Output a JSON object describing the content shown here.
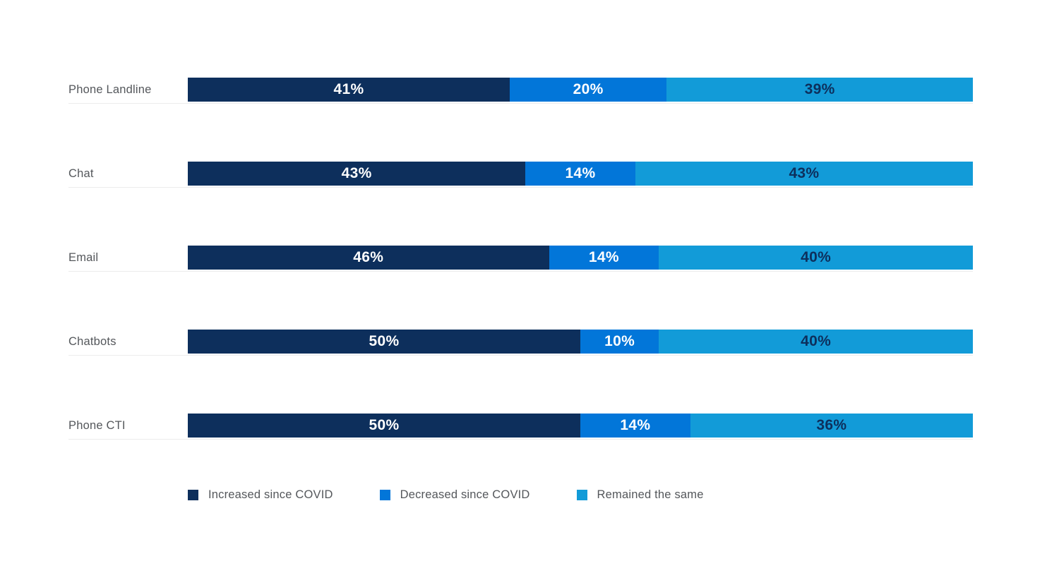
{
  "page": {
    "background": "#ffffff"
  },
  "chart_data": {
    "type": "bar",
    "orientation": "horizontal-stacked",
    "title": "",
    "xlabel": "",
    "ylabel": "",
    "unit": "%",
    "xlim": [
      0,
      100
    ],
    "grid": false,
    "legend_position": "bottom",
    "categories": [
      "Phone Landline",
      "Chat",
      "Email",
      "Chatbots",
      "Phone CTI"
    ],
    "series": [
      {
        "name": "Increased since COVID",
        "color": "#0d2f5c",
        "value_label_color": "#ffffff",
        "values": [
          41,
          43,
          46,
          50,
          50
        ]
      },
      {
        "name": "Decreased since COVID",
        "color": "#0276d9",
        "value_label_color": "#ffffff",
        "values": [
          20,
          14,
          14,
          10,
          14
        ]
      },
      {
        "name": "Remained the same",
        "color": "#129bd8",
        "value_label_color": "#0d2f5c",
        "values": [
          39,
          43,
          40,
          40,
          36
        ]
      }
    ],
    "category_label_color": "#54575b",
    "row_baseline_color": "#ececec"
  }
}
